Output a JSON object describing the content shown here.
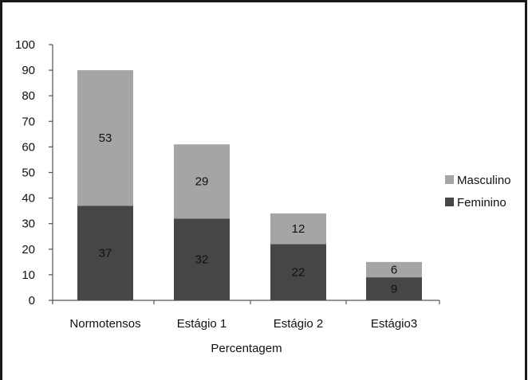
{
  "chart_data": {
    "type": "bar",
    "stacked": true,
    "categories": [
      "Normotensos",
      "Estágio 1",
      "Estágio 2",
      "Estágio3"
    ],
    "series": [
      {
        "name": "Feminino",
        "values": [
          37,
          32,
          22,
          9
        ],
        "color": "#464646"
      },
      {
        "name": "Masculino",
        "values": [
          53,
          29,
          12,
          6
        ],
        "color": "#a5a5a5"
      }
    ],
    "title": "",
    "xlabel": "Percentagem",
    "ylabel": "",
    "ylim": [
      0,
      100
    ],
    "yticks": [
      "0",
      "10",
      "20",
      "30",
      "40",
      "50",
      "60",
      "70",
      "80",
      "90",
      "100"
    ],
    "grid": false,
    "legend_position": "right",
    "legend_order": [
      "Masculino",
      "Feminino"
    ]
  }
}
